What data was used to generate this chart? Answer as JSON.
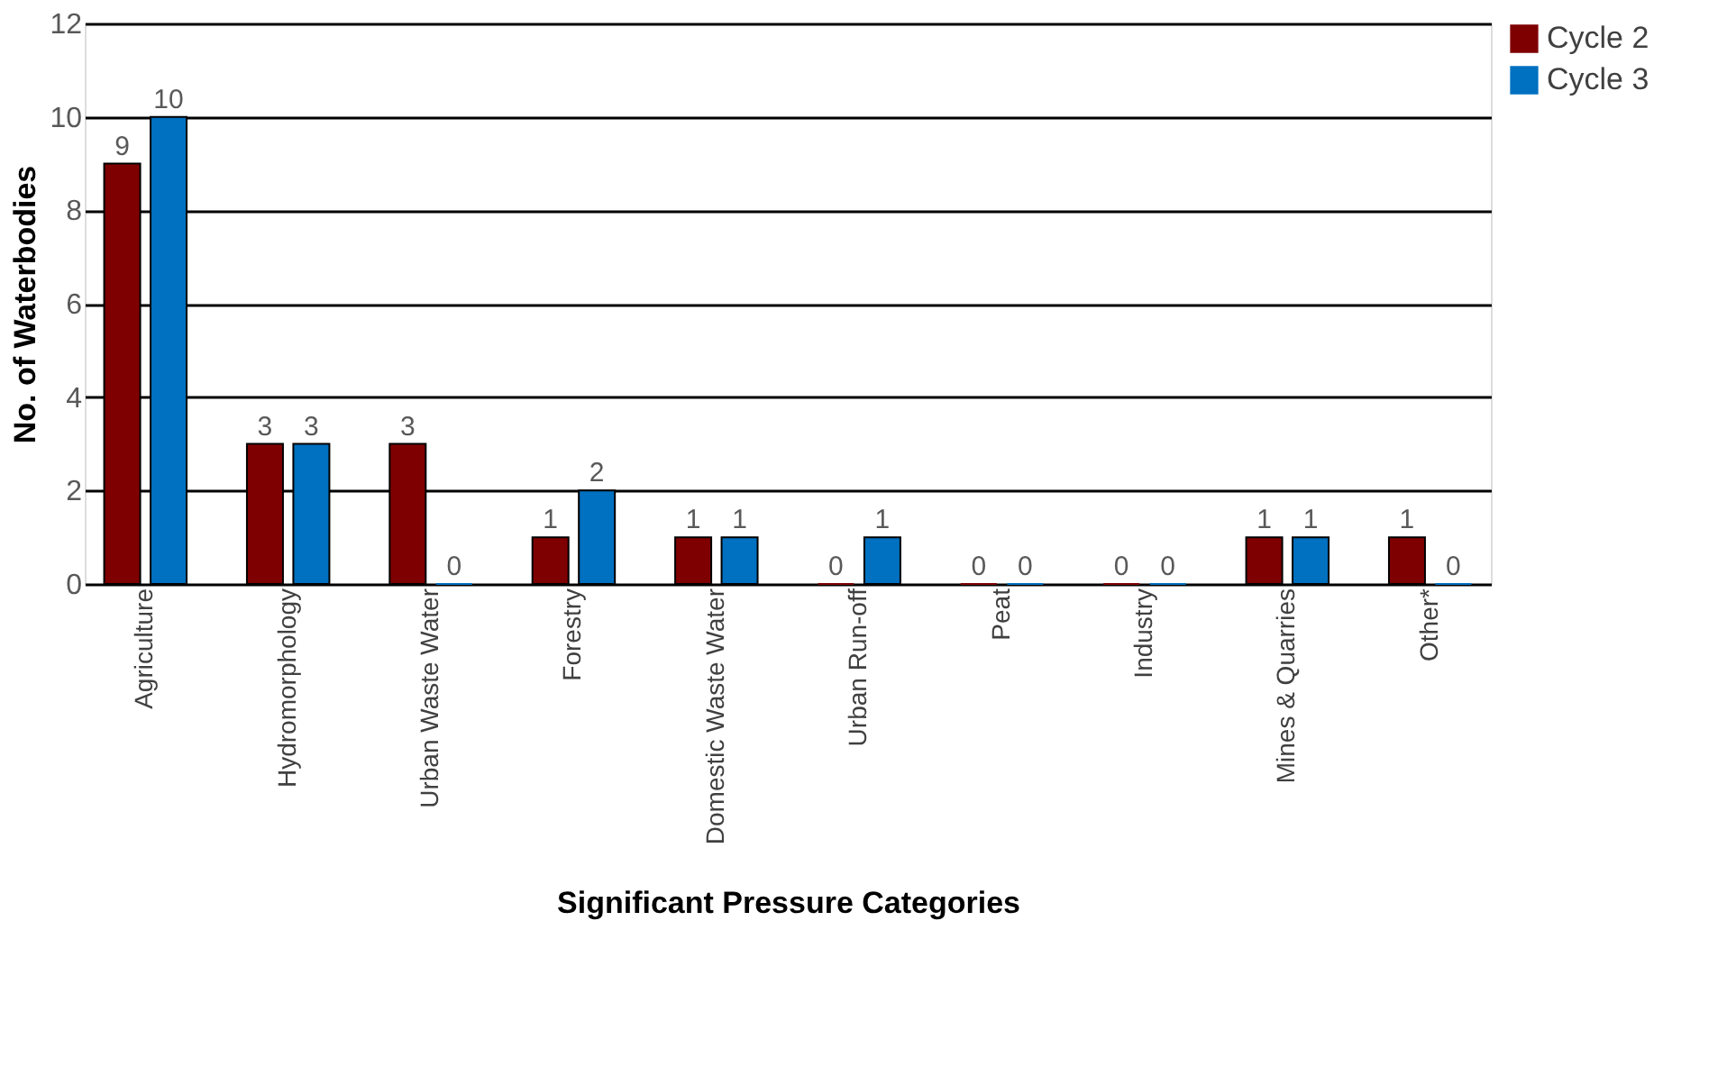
{
  "chart_data": {
    "type": "bar",
    "xlabel": "Significant Pressure Categories",
    "ylabel": "No. of Waterbodies",
    "categories": [
      "Agriculture",
      "Hydromorphology",
      "Urban Waste Water",
      "Forestry",
      "Domestic Waste Water",
      "Urban Run-off",
      "Peat",
      "Industry",
      "Mines & Quarries",
      "Other*"
    ],
    "series": [
      {
        "name": "Cycle 2",
        "color": "#7f0000",
        "values": [
          9,
          3,
          3,
          1,
          1,
          0,
          0,
          0,
          1,
          1
        ]
      },
      {
        "name": "Cycle 3",
        "color": "#0070c0",
        "values": [
          10,
          3,
          0,
          2,
          1,
          1,
          0,
          0,
          1,
          0
        ]
      }
    ],
    "ylim": [
      0,
      12
    ],
    "yticks": [
      0,
      2,
      4,
      6,
      8,
      10,
      12
    ],
    "grid": "y",
    "legend": "right",
    "data_labels": true
  }
}
